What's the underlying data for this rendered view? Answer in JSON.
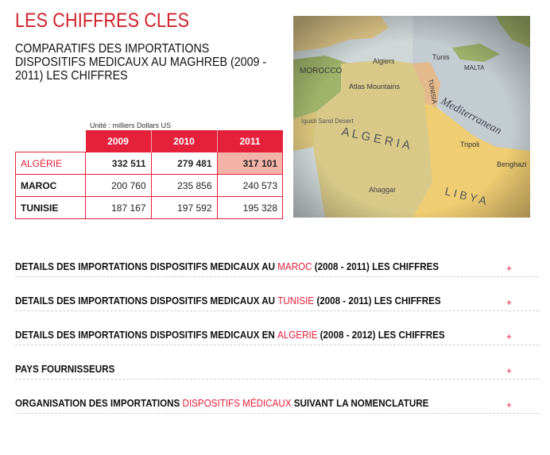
{
  "header": {
    "title": "LES CHIFFRES CLES",
    "subtitle": "COMPARATIFS DES IMPORTATIONS DISPOSITIFS MEDICAUX AU MAGHREB (2009 - 2011) LES CHIFFRES"
  },
  "table": {
    "unit": "Unité : milliers Dollars US",
    "years": [
      "2009",
      "2010",
      "2011"
    ],
    "rows": [
      {
        "country": "ALGÉRIE",
        "values": [
          "332 511",
          "279 481",
          "317 101"
        ]
      },
      {
        "country": "MAROC",
        "values": [
          "200 760",
          "235 856",
          "240 573"
        ]
      },
      {
        "country": "TUNISIE",
        "values": [
          "187 167",
          "197 592",
          "195 328"
        ]
      }
    ]
  },
  "map": {
    "labels": {
      "morocco": "MOROCCO",
      "algeria": "A L G E R I A",
      "libya": "L I B Y A",
      "tunisia": "TUNISIA",
      "mediterranean": "Mediterranean",
      "atlas": "Atlas Mountains",
      "algiers": "Algiers",
      "tunis": "Tunis",
      "tripoli": "Tripoli",
      "malta": "MALTA",
      "ahaggar": "Ahaggar",
      "iguidi": "Iguidi Sand Desert",
      "benghazi": "Benghazi"
    }
  },
  "accordion": [
    {
      "pre": "DETAILS DES IMPORTATIONS DISPOSITIFS MEDICAUX AU ",
      "hl": "MAROC",
      "post": " (2008 - 2011) LES CHIFFRES",
      "icon": "+"
    },
    {
      "pre": "DETAILS DES IMPORTATIONS DISPOSITIFS MEDICAUX AU ",
      "hl": "TUNISIE",
      "post": " (2008 - 2011) LES CHIFFRES",
      "icon": "+"
    },
    {
      "pre": "DETAILS DES IMPORTATIONS DISPOSITIFS MEDICAUX EN ",
      "hl": "ALGERIE",
      "post": " (2008 - 2012) LES CHIFFRES",
      "icon": "+"
    },
    {
      "pre": "PAYS FOURNISSEURS",
      "hl": "",
      "post": "",
      "icon": "+"
    },
    {
      "pre": "ORGANISATION DES IMPORTATIONS ",
      "hl": "DISPOSITIFS MÉDICAUX",
      "post": " SUIVANT LA NOMENCLATURE",
      "icon": "+"
    }
  ]
}
